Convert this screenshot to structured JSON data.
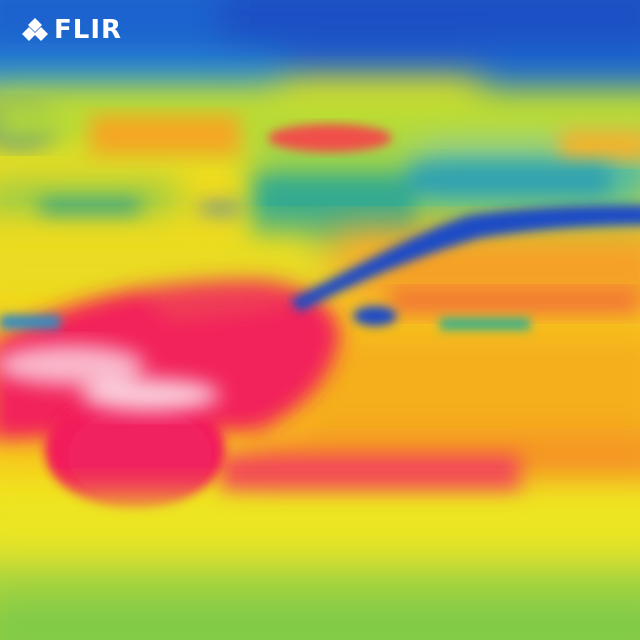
{
  "image": {
    "description_hidden": "",
    "palette": [
      "#1a5fd0",
      "#19a6c9",
      "#3cc07a",
      "#9fd63a",
      "#f2e51d",
      "#f7a11a",
      "#f04a55",
      "#f21d5a",
      "#fbe3ec"
    ]
  },
  "overlay": {
    "brand": "FLIR",
    "brand_icon": "flir-diamond-icon"
  }
}
